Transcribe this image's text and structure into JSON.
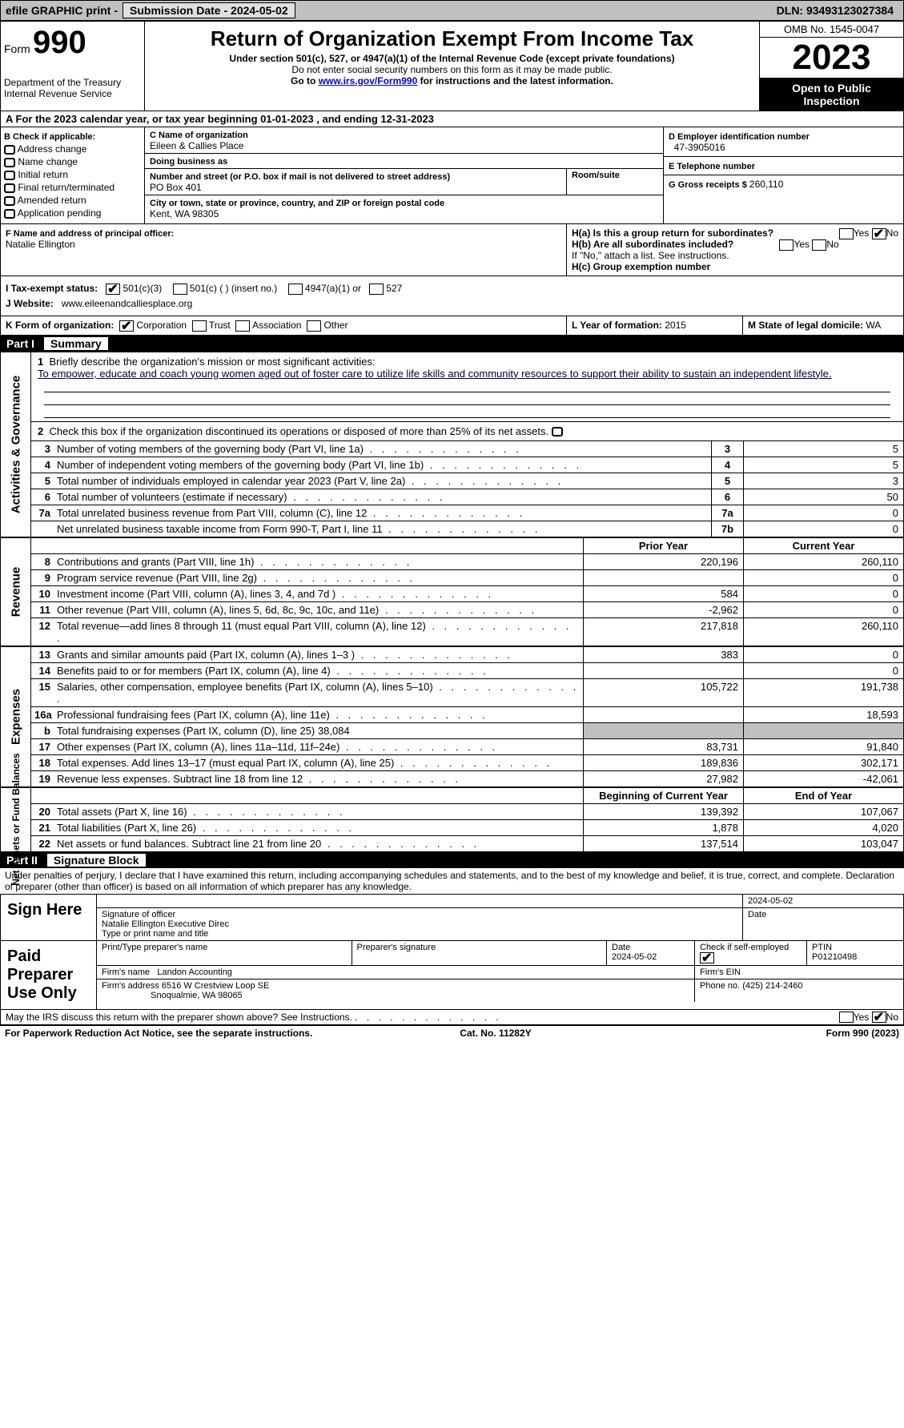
{
  "topbar": {
    "efile": "efile GRAPHIC print - ",
    "do_not_process": "",
    "sub_label": "Submission Date - 2024-05-02",
    "dln_label": "DLN: 93493123027384"
  },
  "header": {
    "form_word": "Form",
    "form_number": "990",
    "dept": "Department of the Treasury",
    "irs": "Internal Revenue Service",
    "title": "Return of Organization Exempt From Income Tax",
    "subtitle": "Under section 501(c), 527, or 4947(a)(1) of the Internal Revenue Code (except private foundations)",
    "note1": "Do not enter social security numbers on this form as it may be made public.",
    "note2": "Go to ",
    "url": "www.irs.gov/Form990",
    "note3": " for instructions and the latest information.",
    "omb": "OMB No. 1545-0047",
    "year": "2023",
    "open": "Open to Public Inspection"
  },
  "lineA": "A  For the 2023 calendar year, or tax year beginning 01-01-2023   , and ending 12-31-2023",
  "boxB": {
    "label": "B Check if applicable:",
    "items": [
      "Address change",
      "Name change",
      "Initial return",
      "Final return/terminated",
      "Amended return",
      "Application pending"
    ]
  },
  "boxC": {
    "name_label": "C Name of organization",
    "name": "Eileen & Callies Place",
    "dba_label": "Doing business as",
    "dba": "",
    "addr_label": "Number and street (or P.O. box if mail is not delivered to street address)",
    "addr": "PO Box 401",
    "room_label": "Room/suite",
    "city_label": "City or town, state or province, country, and ZIP or foreign postal code",
    "city": "Kent, WA  98305"
  },
  "boxD": {
    "label": "D Employer identification number",
    "value": "47-3905016"
  },
  "boxE": {
    "label": "E Telephone number",
    "value": ""
  },
  "boxG": {
    "label": "G Gross receipts $ ",
    "value": "260,110"
  },
  "boxF": {
    "label": "F  Name and address of principal officer:",
    "name": "Natalie Ellington"
  },
  "boxH": {
    "ha": "H(a)  Is this a group return for subordinates?",
    "hb": "H(b)  Are all subordinates included?",
    "hb_note": "If \"No,\" attach a list. See instructions.",
    "hc": "H(c)  Group exemption number",
    "yes": "Yes",
    "no": "No"
  },
  "boxI": {
    "label": "I    Tax-exempt status:",
    "o1": "501(c)(3)",
    "o2": "501(c) (  ) (insert no.)",
    "o3": "4947(a)(1) or",
    "o4": "527"
  },
  "boxJ": {
    "label": "J   Website:",
    "value": "www.eileenandcalliesplace.org"
  },
  "boxK": {
    "label": "K Form of organization:",
    "o1": "Corporation",
    "o2": "Trust",
    "o3": "Association",
    "o4": "Other"
  },
  "boxL": {
    "label": "L Year of formation: ",
    "value": "2015"
  },
  "boxM": {
    "label": "M State of legal domicile: ",
    "value": "WA"
  },
  "part1": {
    "part": "Part I",
    "title": "Summary",
    "q1": "Briefly describe the organization's mission or most significant activities:",
    "mission": "To empower, educate and coach young women aged out of foster care to utilize life skills and community resources to support their ability to sustain an independent lifestyle.",
    "q2": "Check this box  if the organization discontinued its operations or disposed of more than 25% of its net assets.",
    "rows_ag": [
      {
        "n": "3",
        "d": "Number of voting members of the governing body (Part VI, line 1a)",
        "b": "3",
        "v": "5"
      },
      {
        "n": "4",
        "d": "Number of independent voting members of the governing body (Part VI, line 1b)",
        "b": "4",
        "v": "5"
      },
      {
        "n": "5",
        "d": "Total number of individuals employed in calendar year 2023 (Part V, line 2a)",
        "b": "5",
        "v": "3"
      },
      {
        "n": "6",
        "d": "Total number of volunteers (estimate if necessary)",
        "b": "6",
        "v": "50"
      },
      {
        "n": "7a",
        "d": "Total unrelated business revenue from Part VIII, column (C), line 12",
        "b": "7a",
        "v": "0"
      },
      {
        "n": "",
        "d": "Net unrelated business taxable income from Form 990-T, Part I, line 11",
        "b": "7b",
        "v": "0"
      }
    ],
    "col_prior": "Prior Year",
    "col_curr": "Current Year",
    "rows_rev": [
      {
        "n": "8",
        "d": "Contributions and grants (Part VIII, line 1h)",
        "p": "220,196",
        "c": "260,110"
      },
      {
        "n": "9",
        "d": "Program service revenue (Part VIII, line 2g)",
        "p": "",
        "c": "0"
      },
      {
        "n": "10",
        "d": "Investment income (Part VIII, column (A), lines 3, 4, and 7d )",
        "p": "584",
        "c": "0"
      },
      {
        "n": "11",
        "d": "Other revenue (Part VIII, column (A), lines 5, 6d, 8c, 9c, 10c, and 11e)",
        "p": "-2,962",
        "c": "0"
      },
      {
        "n": "12",
        "d": "Total revenue—add lines 8 through 11 (must equal Part VIII, column (A), line 12)",
        "p": "217,818",
        "c": "260,110"
      }
    ],
    "rows_exp": [
      {
        "n": "13",
        "d": "Grants and similar amounts paid (Part IX, column (A), lines 1–3 )",
        "p": "383",
        "c": "0"
      },
      {
        "n": "14",
        "d": "Benefits paid to or for members (Part IX, column (A), line 4)",
        "p": "",
        "c": "0"
      },
      {
        "n": "15",
        "d": "Salaries, other compensation, employee benefits (Part IX, column (A), lines 5–10)",
        "p": "105,722",
        "c": "191,738"
      },
      {
        "n": "16a",
        "d": "Professional fundraising fees (Part IX, column (A), line 11e)",
        "p": "",
        "c": "18,593"
      },
      {
        "n": "b",
        "d": "Total fundraising expenses (Part IX, column (D), line 25) 38,084",
        "p": "__gray__",
        "c": "__gray__"
      },
      {
        "n": "17",
        "d": "Other expenses (Part IX, column (A), lines 11a–11d, 11f–24e)",
        "p": "83,731",
        "c": "91,840"
      },
      {
        "n": "18",
        "d": "Total expenses. Add lines 13–17 (must equal Part IX, column (A), line 25)",
        "p": "189,836",
        "c": "302,171"
      },
      {
        "n": "19",
        "d": "Revenue less expenses. Subtract line 18 from line 12",
        "p": "27,982",
        "c": "-42,061"
      }
    ],
    "col_bcy": "Beginning of Current Year",
    "col_eoy": "End of Year",
    "rows_na": [
      {
        "n": "20",
        "d": "Total assets (Part X, line 16)",
        "p": "139,392",
        "c": "107,067"
      },
      {
        "n": "21",
        "d": "Total liabilities (Part X, line 26)",
        "p": "1,878",
        "c": "4,020"
      },
      {
        "n": "22",
        "d": "Net assets or fund balances. Subtract line 21 from line 20",
        "p": "137,514",
        "c": "103,047"
      }
    ],
    "vtab_ag": "Activities & Governance",
    "vtab_rev": "Revenue",
    "vtab_exp": "Expenses",
    "vtab_na": "Net Assets or Fund Balances"
  },
  "part2": {
    "part": "Part II",
    "title": "Signature Block",
    "pre": "Under penalties of perjury, I declare that I have examined this return, including accompanying schedules and statements, and to the best of my knowledge and belief, it is true, correct, and complete. Declaration of preparer (other than officer) is based on all information of which preparer has any knowledge.",
    "sign_here": "Sign Here",
    "sig_officer": "Signature of officer",
    "sig_name": "Natalie Ellington  Executive Direc",
    "type_label": "Type or print name and title",
    "date": "Date",
    "date_val": "2024-05-02",
    "paid": "Paid Preparer Use Only",
    "prep_name_label": "Print/Type preparer's name",
    "prep_sig_label": "Preparer's signature",
    "prep_date": "2024-05-02",
    "check_self": "Check        if self-employed",
    "ptin_label": "PTIN",
    "ptin": "P01210498",
    "firm_name_label": "Firm's name",
    "firm_name": "Landon Accounting",
    "firm_ein_label": "Firm's EIN",
    "firm_addr_label": "Firm's address",
    "firm_addr": "6516 W Crestview Loop SE",
    "firm_city": "Snoqualmie, WA  98065",
    "phone_label": "Phone no. ",
    "phone": "(425) 214-2460",
    "may_irs": "May the IRS discuss this return with the preparer shown above? See Instructions."
  },
  "footer": {
    "left": "For Paperwork Reduction Act Notice, see the separate instructions.",
    "mid": "Cat. No. 11282Y",
    "right": "Form 990 (2023)"
  }
}
